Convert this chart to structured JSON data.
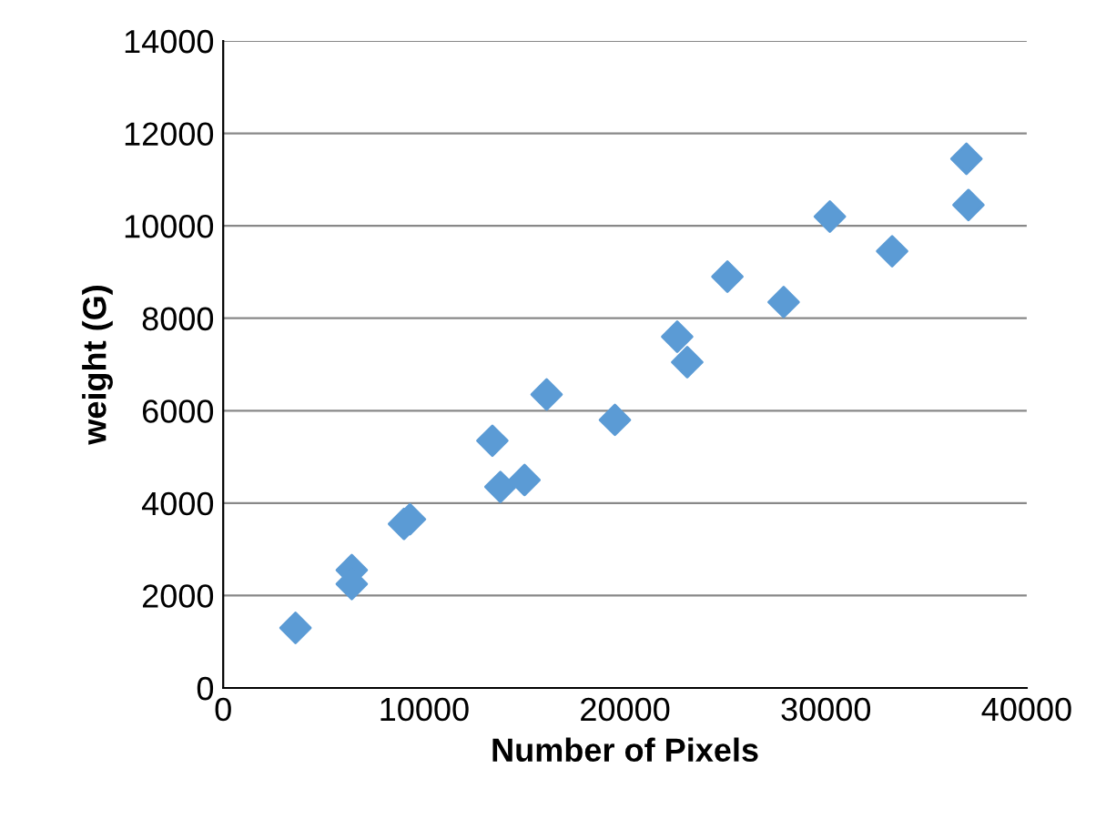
{
  "chart_data": {
    "type": "scatter",
    "xlabel": "Number of Pixels",
    "ylabel": "weight (G)",
    "x": [
      3600,
      6400,
      6400,
      9000,
      9300,
      13400,
      13800,
      15000,
      16100,
      19500,
      22600,
      23100,
      25100,
      27900,
      30200,
      33300,
      37000,
      37100
    ],
    "series": [
      {
        "color": "#5b9bd5",
        "values": [
          1300,
          2550,
          2250,
          3550,
          3650,
          5350,
          4350,
          4500,
          6350,
          5800,
          7600,
          7050,
          8900,
          8350,
          10200,
          9450,
          11450,
          10450
        ]
      }
    ],
    "xlim": [
      0,
      40000
    ],
    "xticks": [
      0,
      10000,
      20000,
      30000,
      40000
    ],
    "ylim": [
      0,
      14000
    ],
    "yticks": [
      0,
      2000,
      4000,
      6000,
      8000,
      10000,
      12000,
      14000
    ],
    "grid": "y",
    "marker": "diamond",
    "legend": false
  }
}
